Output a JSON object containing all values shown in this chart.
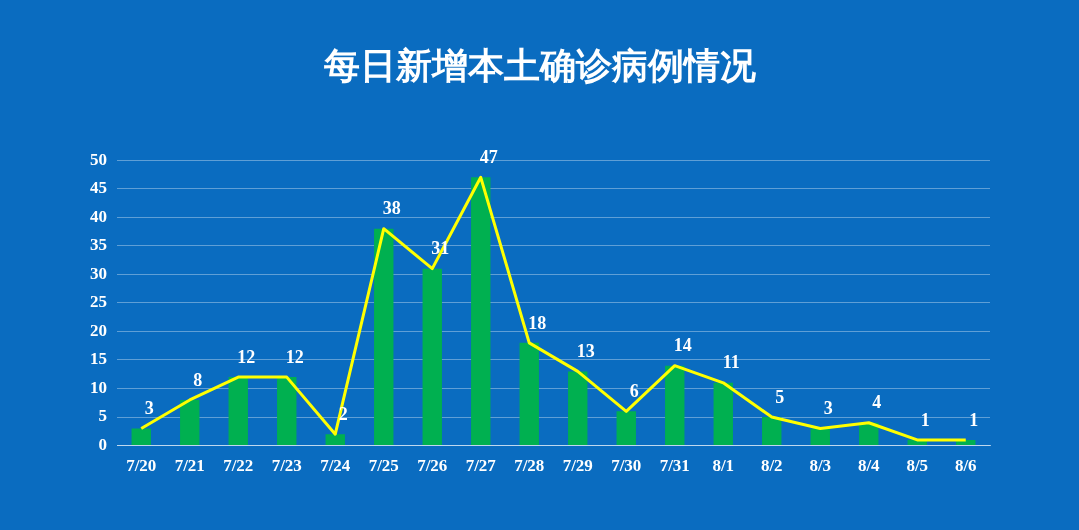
{
  "chart_data": {
    "type": "bar",
    "title": "每日新增本土确诊病例情况",
    "categories": [
      "7/20",
      "7/21",
      "7/22",
      "7/23",
      "7/24",
      "7/25",
      "7/26",
      "7/27",
      "7/28",
      "7/29",
      "7/30",
      "7/31",
      "8/1",
      "8/2",
      "8/3",
      "8/4",
      "8/5",
      "8/6"
    ],
    "series": [
      {
        "color": "#00b050",
        "values": [
          3,
          8,
          12,
          12,
          2,
          38,
          31,
          47,
          18,
          13,
          6,
          14,
          11,
          5,
          3,
          4,
          1,
          1
        ]
      },
      {
        "type": "line",
        "color": "#ffff00",
        "values": [
          3,
          8,
          12,
          12,
          2,
          38,
          31,
          47,
          18,
          13,
          6,
          14,
          11,
          5,
          3,
          4,
          1,
          1
        ],
        "value_labels": [
          "3",
          "8",
          "12",
          "12",
          "2",
          "38",
          "31",
          "47",
          "18",
          "13",
          "6",
          "14",
          "11",
          "5",
          "3",
          "4",
          "1",
          "1"
        ]
      }
    ],
    "ylim": [
      0,
      50
    ],
    "yticks": [
      0,
      5,
      10,
      15,
      20,
      25,
      30,
      35,
      40,
      45,
      50
    ],
    "grid": "y",
    "legend": false,
    "marker": "none"
  }
}
